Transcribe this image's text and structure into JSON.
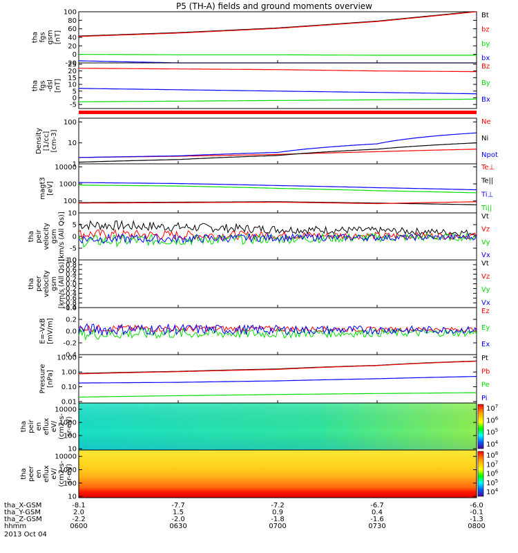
{
  "figure": {
    "title": "P5 (TH-A) fields and ground moments overview",
    "date": "2013 Oct 04"
  },
  "colors": {
    "black": "#000000",
    "red": "#ff0000",
    "green": "#00dd00",
    "blue": "#0000ff"
  },
  "chart_data": [
    {
      "id": "fgs_gsm",
      "type": "line",
      "ylabel": [
        "tha",
        "fgs",
        "gsm",
        "[nT]"
      ],
      "ylim": [
        -20,
        100
      ],
      "yticks": [
        "100",
        "80",
        "60",
        "40",
        "20",
        "0",
        "-20"
      ],
      "x": [
        "0600",
        "0630",
        "0700",
        "0730",
        "0800"
      ],
      "series": [
        {
          "name": "Bt",
          "color": "#000000",
          "values": [
            43,
            51,
            62,
            78,
            101
          ]
        },
        {
          "name": "bz",
          "color": "#ff0000",
          "values": [
            42,
            50,
            61,
            77,
            100
          ]
        },
        {
          "name": "by",
          "color": "#00dd00",
          "values": [
            0,
            -1,
            -1,
            -2,
            -2
          ]
        },
        {
          "name": "bx",
          "color": "#0000ff",
          "values": [
            -15,
            -20,
            -23,
            -24,
            -24
          ]
        }
      ]
    },
    {
      "id": "fgs_dsl",
      "type": "line",
      "ylabel": [
        "tha",
        "fgs",
        "-dsl",
        "[nT]"
      ],
      "ylim": [
        -8,
        26
      ],
      "yticks": [
        "25",
        "20",
        "15",
        "10",
        "5",
        "0",
        "-5"
      ],
      "x": [
        "0600",
        "0630",
        "0700",
        "0730",
        "0800"
      ],
      "series": [
        {
          "name": "Bz",
          "color": "#ff0000",
          "values": [
            22,
            21.5,
            21,
            20,
            19.5
          ]
        },
        {
          "name": "By",
          "color": "#00dd00",
          "values": [
            -3,
            -2.5,
            -2,
            -1.5,
            -1
          ]
        },
        {
          "name": "Bx",
          "color": "#0000ff",
          "values": [
            7,
            6,
            5,
            4,
            3
          ]
        }
      ]
    },
    {
      "id": "density",
      "type": "line",
      "yscale": "log",
      "ylabel": [
        "Density",
        "[1/cc]",
        "[cm-3]"
      ],
      "ylim": [
        1,
        150
      ],
      "yticks": [
        "100",
        "10",
        "1"
      ],
      "x": [
        "0600",
        "0630",
        "0700",
        "0730",
        "0800"
      ],
      "series": [
        {
          "name": "Ne",
          "color": "#ff0000",
          "values": [
            2,
            2.3,
            2.8,
            3.8,
            5
          ]
        },
        {
          "name": "Ni",
          "color": "#000000",
          "values": [
            1.2,
            1.6,
            2.5,
            5,
            10
          ]
        },
        {
          "name": "Npot",
          "color": "#0000ff",
          "values": [
            2,
            2.4,
            3.5,
            9,
            30
          ]
        }
      ]
    },
    {
      "id": "temperature",
      "type": "line",
      "yscale": "log",
      "ylabel": [
        "magt3",
        "[eV]"
      ],
      "ylim": [
        20,
        15000
      ],
      "yticks": [
        "10000",
        "1000",
        "100"
      ],
      "x": [
        "0600",
        "0630",
        "0700",
        "0730",
        "0800"
      ],
      "legend": [
        "Te⊥",
        "Te||",
        "Ti⊥",
        "Ti||"
      ],
      "series": [
        {
          "name": "Ti⊥",
          "color": "#0000ff",
          "values": [
            1200,
            1050,
            800,
            600,
            450
          ]
        },
        {
          "name": "Ti||",
          "color": "#00dd00",
          "values": [
            850,
            750,
            550,
            400,
            300
          ]
        },
        {
          "name": "Te||",
          "color": "#000000",
          "values": [
            80,
            85,
            90,
            75,
            60
          ]
        },
        {
          "name": "Te⊥",
          "color": "#ff0000",
          "values": [
            75,
            80,
            85,
            70,
            90
          ]
        }
      ]
    },
    {
      "id": "peir_velocity",
      "type": "line",
      "ylabel": [
        "tha",
        "peir",
        "velocity",
        "gsm",
        "[km/s (All Qs)]"
      ],
      "ylim": [
        -10,
        10
      ],
      "yticks": [
        "10",
        "5",
        "0",
        "-5",
        "-10"
      ],
      "x": [
        "0600",
        "0630",
        "0700",
        "0730",
        "0800"
      ],
      "series": [
        {
          "name": "Vt",
          "color": "#000000",
          "values": [
            5,
            4,
            3,
            2.5,
            1.5
          ]
        },
        {
          "name": "Vz",
          "color": "#ff0000",
          "values": [
            1,
            0.5,
            0.5,
            0.3,
            0.2
          ]
        },
        {
          "name": "Vy",
          "color": "#00dd00",
          "values": [
            -2,
            -1.5,
            -1,
            -0.5,
            -0.3
          ]
        },
        {
          "name": "Vx",
          "color": "#0000ff",
          "values": [
            -1,
            -1,
            -0.5,
            -0.5,
            -0.3
          ]
        }
      ]
    },
    {
      "id": "peer_velocity",
      "type": "line",
      "ylabel": [
        "tha",
        "peer",
        "velocity",
        "gsm",
        "[km/s (All Qs)]"
      ],
      "ylim": [
        -1,
        1
      ],
      "yticks": [
        "1.0",
        "0.8",
        "0.6",
        "0.4",
        "0.2",
        "0.0",
        "-0.2",
        "-0.4",
        "-0.6",
        "-0.8",
        "-1.0"
      ],
      "yticks_display": [
        "-1.0",
        "-0.8",
        "-0.6",
        "-0.4",
        "-0.2",
        "0.0",
        "0.2",
        "0.4",
        "0.6",
        "0.8",
        "1.0"
      ],
      "x": [
        "0600",
        "0630",
        "0700",
        "0730",
        "0800"
      ],
      "legend": [
        "Vt",
        "Vz",
        "Vy",
        "Vx"
      ],
      "series": []
    },
    {
      "id": "efield",
      "type": "line",
      "ylabel": [
        "E=-VxB",
        "[mV/m]"
      ],
      "ylim": [
        -0.4,
        0.4
      ],
      "yticks": [
        "0.4",
        "0.2",
        "0.0",
        "-0.2",
        "-0.4"
      ],
      "x": [
        "0600",
        "0630",
        "0700",
        "0730",
        "0800"
      ],
      "series": [
        {
          "name": "Ez",
          "color": "#ff0000",
          "values": [
            0.05,
            0.04,
            0.04,
            0.03,
            0.03
          ]
        },
        {
          "name": "Ey",
          "color": "#00dd00",
          "values": [
            -0.05,
            -0.04,
            -0.04,
            -0.03,
            -0.03
          ]
        },
        {
          "name": "Ex",
          "color": "#0000ff",
          "values": [
            0.03,
            0.03,
            0.02,
            0.02,
            0.02
          ]
        }
      ]
    },
    {
      "id": "pressure",
      "type": "line",
      "yscale": "log",
      "ylabel": [
        "Pressure",
        "[nPa]"
      ],
      "ylim": [
        0.008,
        15
      ],
      "yticks": [
        "10.00",
        "1.00",
        "0.10",
        "0.01"
      ],
      "x": [
        "0600",
        "0630",
        "0700",
        "0730",
        "0800"
      ],
      "series": [
        {
          "name": "Pt",
          "color": "#000000",
          "values": [
            0.8,
            1.1,
            1.6,
            2.8,
            5.5
          ]
        },
        {
          "name": "Pb",
          "color": "#ff0000",
          "values": [
            0.75,
            1.05,
            1.5,
            2.7,
            5.3
          ]
        },
        {
          "name": "Pe",
          "color": "#00dd00",
          "values": [
            0.02,
            0.025,
            0.03,
            0.035,
            0.04
          ]
        },
        {
          "name": "Pi",
          "color": "#0000ff",
          "values": [
            0.18,
            0.2,
            0.25,
            0.35,
            0.5
          ]
        }
      ]
    },
    {
      "id": "peir_en_eflux",
      "type": "heatmap",
      "yscale": "log",
      "ylabel": [
        "tha",
        "peir",
        "en",
        "eflux",
        "eV/",
        "(cm2-s-",
        "sr-eV)"
      ],
      "ylim": [
        8,
        30000
      ],
      "yticks": [
        "10000",
        "1000",
        "100",
        "10"
      ],
      "colorbar_ticks": [
        "10^7",
        "10^6",
        "10^5",
        "10^4"
      ]
    },
    {
      "id": "peer_en_eflux",
      "type": "heatmap",
      "yscale": "log",
      "ylabel": [
        "tha",
        "peer",
        "en",
        "eflux",
        "eV/",
        "(cm2-s-",
        "sr-eV)"
      ],
      "ylim": [
        8,
        30000
      ],
      "yticks": [
        "10000",
        "1000",
        "100",
        "10"
      ],
      "colorbar_ticks": [
        "10^8",
        "10^7",
        "10^6",
        "10^5",
        "10^4"
      ]
    }
  ],
  "footer": {
    "rows": [
      {
        "label": "tha_X-GSM",
        "values": [
          "-8.1",
          "-7.7",
          "-7.2",
          "-6.7",
          "-6.0"
        ]
      },
      {
        "label": "tha_Y-GSM",
        "values": [
          "2.0",
          "1.5",
          "0.9",
          "0.4",
          "-0.1"
        ]
      },
      {
        "label": "tha_Z-GSM",
        "values": [
          "-2.2",
          "-2.0",
          "-1.8",
          "-1.6",
          "-1.3"
        ]
      },
      {
        "label": "hhmm",
        "values": [
          "0600",
          "0630",
          "0700",
          "0730",
          "0800"
        ]
      }
    ]
  }
}
